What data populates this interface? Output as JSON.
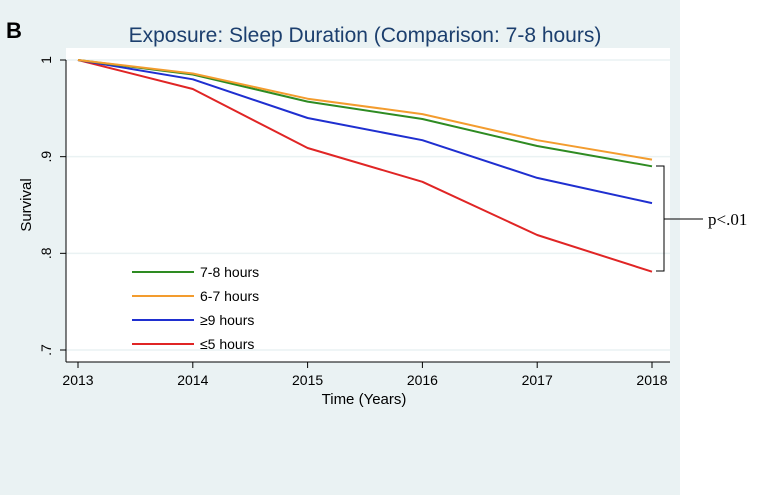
{
  "panel_letter": "B",
  "annotation": {
    "label": "p<.01"
  },
  "colors": {
    "figure_bg": "#eaf2f3",
    "plot_bg": "#ffffff",
    "title": "#1c3f6e",
    "axis": "#000000",
    "grid": "#eaf2f3"
  },
  "chart_data": {
    "type": "line",
    "title": "Exposure: Sleep Duration (Comparison: 7-8 hours)",
    "xlabel": "Time (Years)",
    "ylabel": "Survival",
    "x": [
      2013,
      2014,
      2015,
      2016,
      2017,
      2018
    ],
    "xlim": [
      2013,
      2018
    ],
    "ylim": [
      0.7,
      1.0
    ],
    "xticks": [
      "2013",
      "2014",
      "2015",
      "2016",
      "2017",
      "2018"
    ],
    "yticks": [
      "1",
      ".9",
      ".8",
      ".7"
    ],
    "grid": true,
    "legend": "inside-lower-left",
    "series": [
      {
        "name": "7-8 hours",
        "color": "#2e8b22",
        "values": [
          1.0,
          0.985,
          0.957,
          0.939,
          0.911,
          0.89
        ]
      },
      {
        "name": "6-7 hours",
        "color": "#f39c2e",
        "values": [
          1.0,
          0.986,
          0.96,
          0.944,
          0.917,
          0.897
        ]
      },
      {
        "name": "≥9 hours",
        "color": "#1f2fd0",
        "values": [
          1.0,
          0.98,
          0.94,
          0.917,
          0.878,
          0.852
        ]
      },
      {
        "name": "≤5 hours",
        "color": "#e02525",
        "values": [
          1.0,
          0.97,
          0.909,
          0.874,
          0.819,
          0.781
        ]
      }
    ]
  }
}
